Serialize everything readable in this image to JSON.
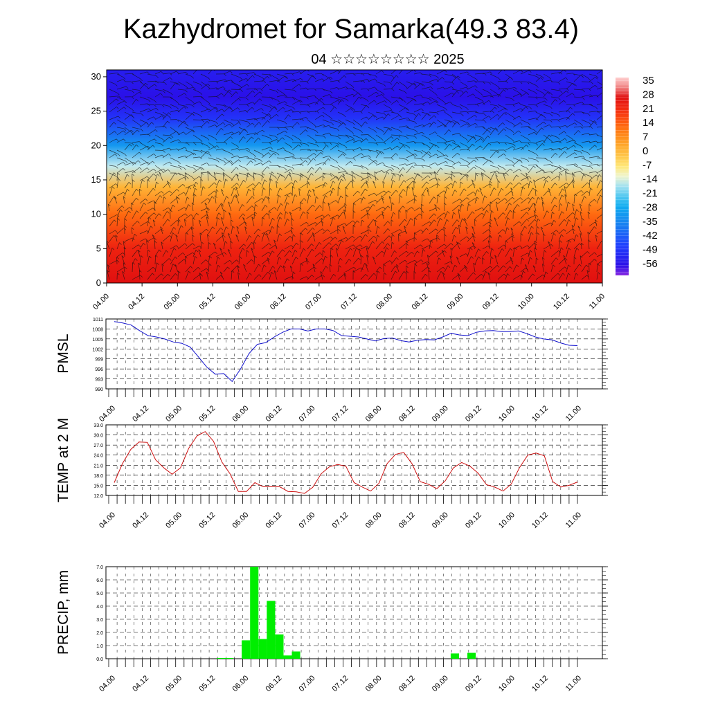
{
  "title": "Kazhydromet for Samarka(49.3 83.4)",
  "subtitle": "04 ☆☆☆☆☆☆☆☆ 2025",
  "chart_data": [
    {
      "type": "heatmap",
      "name": "temperature-wind-cross-section",
      "x_ticks": [
        "04.00",
        "04.12",
        "05.00",
        "05.12",
        "06.00",
        "06.12",
        "07.00",
        "07.12",
        "08.00",
        "08.12",
        "09.00",
        "09.12",
        "10.00",
        "10.12",
        "11.00"
      ],
      "y_ticks": [
        "0",
        "5",
        "10",
        "15",
        "20",
        "25",
        "30"
      ],
      "ylim": [
        0,
        31
      ],
      "colorbar_labels": [
        "35",
        "28",
        "21",
        "14",
        "7",
        "0",
        "-7",
        "-14",
        "-21",
        "-28",
        "-35",
        "-42",
        "-49",
        "-56"
      ],
      "colorbar_range": [
        -60,
        38
      ],
      "profile": [
        {
          "height": 0,
          "value": 28
        },
        {
          "height": 5,
          "value": 24
        },
        {
          "height": 10,
          "value": 14
        },
        {
          "height": 14,
          "value": 2
        },
        {
          "height": 17,
          "value": -14
        },
        {
          "height": 20,
          "value": -30
        },
        {
          "height": 24,
          "value": -48
        },
        {
          "height": 27,
          "value": -55
        },
        {
          "height": 31,
          "value": -52
        }
      ],
      "overlay": "wind barbs",
      "colors": {
        "cold": "#3010e0",
        "mid": "#ffe060",
        "warm": "#e02000"
      }
    },
    {
      "type": "line",
      "ylabel": "PMSL",
      "x_ticks": [
        "04.00",
        "04.12",
        "05.00",
        "05.12",
        "06.00",
        "06.12",
        "07.00",
        "07.12",
        "08.00",
        "08.12",
        "09.00",
        "09.12",
        "10.00",
        "10.12",
        "11.00"
      ],
      "y_ticks": [
        "1011",
        "1008",
        "1005",
        "1002",
        "999",
        "996",
        "993",
        "990"
      ],
      "ylim": [
        990,
        1011
      ],
      "values": [
        1010.2,
        1009.8,
        1009.2,
        1007.5,
        1006.0,
        1005.6,
        1005.0,
        1004.1,
        1003.7,
        1002.6,
        999.6,
        996.5,
        994.4,
        994.6,
        992.2,
        996.0,
        1000.6,
        1003.4,
        1003.9,
        1005.6,
        1007.0,
        1008.0,
        1008.0,
        1007.4,
        1008.0,
        1008.0,
        1007.5,
        1006.0,
        1005.8,
        1005.6,
        1005.0,
        1004.4,
        1005.1,
        1005.3,
        1004.5,
        1004.1,
        1004.6,
        1004.8,
        1004.7,
        1005.6,
        1006.7,
        1006.2,
        1006.0,
        1007.0,
        1007.4,
        1007.5,
        1007.2,
        1007.2,
        1007.4,
        1006.6,
        1005.6,
        1005.0,
        1004.7,
        1003.8,
        1003.1,
        1003.0
      ],
      "color": "#1010cc"
    },
    {
      "type": "line",
      "ylabel": "TEMP at 2 M",
      "x_ticks": [
        "04.00",
        "04.12",
        "05.00",
        "05.12",
        "06.00",
        "06.12",
        "07.00",
        "07.12",
        "08.00",
        "08.12",
        "09.00",
        "09.12",
        "10.00",
        "10.12",
        "11.00"
      ],
      "y_ticks": [
        "33.0",
        "30.0",
        "27.0",
        "24.0",
        "21.0",
        "18.0",
        "15.0",
        "12.0"
      ],
      "ylim": [
        12,
        33
      ],
      "values": [
        15.8,
        21.5,
        25.7,
        27.9,
        27.8,
        22.6,
        20.2,
        18.3,
        20.2,
        26.0,
        29.7,
        31.0,
        28.1,
        22.0,
        18.4,
        13.2,
        13.2,
        15.8,
        14.6,
        14.6,
        14.6,
        13.2,
        13.1,
        12.6,
        14.4,
        18.4,
        20.5,
        21.2,
        20.7,
        15.8,
        14.5,
        13.3,
        15.6,
        21.5,
        24.2,
        24.8,
        21.4,
        16.1,
        15.3,
        14.0,
        16.3,
        20.2,
        21.8,
        20.7,
        18.6,
        15.2,
        14.5,
        13.3,
        15.4,
        20.3,
        24.0,
        24.6,
        23.8,
        16.1,
        14.5,
        15.0,
        16.0
      ],
      "color": "#cc1010"
    },
    {
      "type": "bar",
      "ylabel": "PRECIP, mm",
      "x_ticks": [
        "04.00",
        "04.12",
        "05.00",
        "05.12",
        "06.00",
        "06.12",
        "07.00",
        "07.12",
        "08.00",
        "08.12",
        "09.00",
        "09.12",
        "10.00",
        "10.12",
        "11.00"
      ],
      "y_ticks": [
        "7.0",
        "6.0",
        "5.0",
        "4.0",
        "3.0",
        "2.0",
        "1.0",
        "0.0"
      ],
      "ylim": [
        0,
        7
      ],
      "values": [
        0,
        0,
        0,
        0,
        0,
        0,
        0,
        0,
        0,
        0,
        0,
        0,
        0,
        0.05,
        0.05,
        0,
        1.4,
        7.0,
        1.5,
        4.4,
        1.85,
        0.25,
        0.55,
        0,
        0,
        0,
        0,
        0,
        0,
        0,
        0,
        0,
        0,
        0,
        0,
        0,
        0,
        0,
        0,
        0,
        0,
        0.4,
        0,
        0.45,
        0,
        0,
        0,
        0,
        0,
        0,
        0,
        0,
        0,
        0,
        0,
        0
      ],
      "color": "#00ee00"
    }
  ]
}
